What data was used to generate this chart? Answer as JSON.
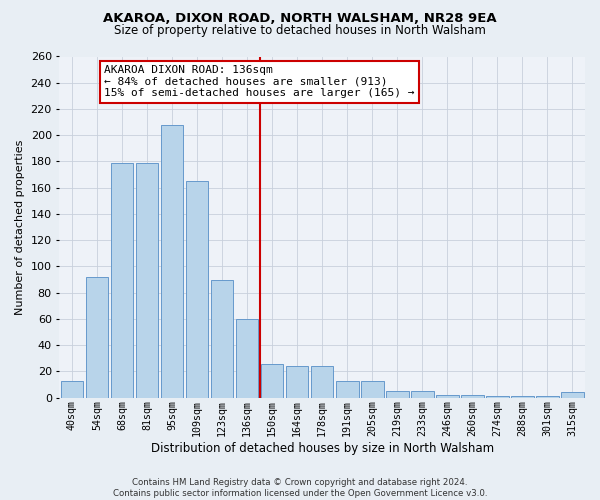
{
  "title": "AKAROA, DIXON ROAD, NORTH WALSHAM, NR28 9EA",
  "subtitle": "Size of property relative to detached houses in North Walsham",
  "xlabel": "Distribution of detached houses by size in North Walsham",
  "ylabel": "Number of detached properties",
  "bar_labels": [
    "40sqm",
    "54sqm",
    "68sqm",
    "81sqm",
    "95sqm",
    "109sqm",
    "123sqm",
    "136sqm",
    "150sqm",
    "164sqm",
    "178sqm",
    "191sqm",
    "205sqm",
    "219sqm",
    "233sqm",
    "246sqm",
    "260sqm",
    "274sqm",
    "288sqm",
    "301sqm",
    "315sqm"
  ],
  "bar_heights": [
    13,
    92,
    179,
    179,
    208,
    165,
    90,
    60,
    26,
    24,
    24,
    13,
    13,
    5,
    5,
    2,
    2,
    1,
    1,
    1,
    4
  ],
  "bar_color": "#b8d4ea",
  "bar_edge_color": "#6699cc",
  "marker_index": 7,
  "marker_color": "#cc0000",
  "annotation_title": "AKAROA DIXON ROAD: 136sqm",
  "annotation_line1": "← 84% of detached houses are smaller (913)",
  "annotation_line2": "15% of semi-detached houses are larger (165) →",
  "footer_line1": "Contains HM Land Registry data © Crown copyright and database right 2024.",
  "footer_line2": "Contains public sector information licensed under the Open Government Licence v3.0.",
  "ylim": [
    0,
    260
  ],
  "yticks": [
    0,
    20,
    40,
    60,
    80,
    100,
    120,
    140,
    160,
    180,
    200,
    220,
    240,
    260
  ],
  "background_color": "#e8eef4",
  "plot_background_color": "#eef2f8"
}
